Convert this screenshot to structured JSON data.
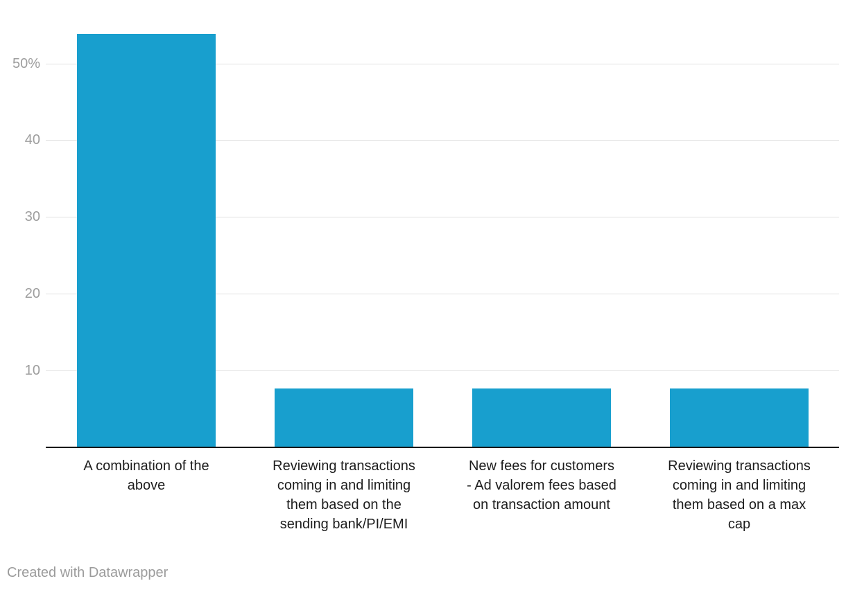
{
  "chart_data": {
    "type": "bar",
    "categories": [
      "A combination of the above",
      "Reviewing transactions coming in and limiting them based on the sending bank/PI/EMI",
      "New fees for customers - Ad valorem fees based on transaction amount",
      "Reviewing transactions coming in and limiting them based on a max cap"
    ],
    "category_lines": [
      [
        "A combination of the",
        "above"
      ],
      [
        "Reviewing transactions",
        "coming in and limiting",
        "them based on the",
        "sending bank/PI/EMI"
      ],
      [
        "New fees for customers",
        "- Ad valorem fees based",
        "on transaction amount"
      ],
      [
        "Reviewing transactions",
        "coming in and limiting",
        "them based on a max",
        "cap"
      ]
    ],
    "values": [
      53.8,
      7.7,
      7.7,
      7.7
    ],
    "unit": "%",
    "y_ticks": [
      {
        "value": 10,
        "label": "10"
      },
      {
        "value": 20,
        "label": "20"
      },
      {
        "value": 30,
        "label": "30"
      },
      {
        "value": 40,
        "label": "40"
      },
      {
        "value": 50,
        "label": "50%"
      }
    ],
    "ylim": [
      0,
      58.3
    ],
    "grid": true,
    "legend": "none",
    "title": "",
    "xlabel": "",
    "ylabel": ""
  },
  "colors": {
    "bar": "#189fce",
    "gridline": "#e0e0e0",
    "axis_line": "#181818",
    "tick_text": "#9e9e9e",
    "category_text": "#1d1d1d",
    "footer_text": "#9b9b9b",
    "background": "#ffffff"
  },
  "footer": {
    "credit": "Created with Datawrapper"
  }
}
